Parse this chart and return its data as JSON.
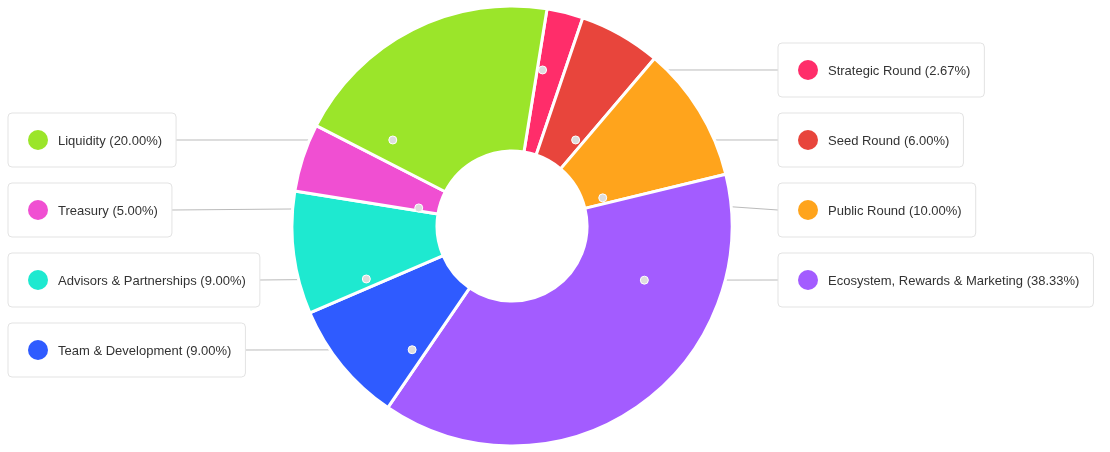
{
  "chart_data": {
    "type": "donut",
    "categories": [
      "Strategic Round",
      "Seed Round",
      "Public Round",
      "Ecosystem, Rewards & Marketing",
      "Team & Development",
      "Advisors & Partnerships",
      "Treasury",
      "Liquidity"
    ],
    "values": [
      2.67,
      6,
      10,
      38.33,
      9,
      9,
      5,
      20
    ],
    "legend": "right",
    "value_labels": [
      "(2.67%)",
      "(6.00%)",
      "(10.00%)",
      "(38.33%)",
      "(9.00%)",
      "(9.00%)",
      "(5.00%)",
      "(20.00%)"
    ],
    "colors": [
      "#ff2d6a",
      "#e8453c",
      "#ffa41c",
      "#a35cff",
      "#2f5bff",
      "#1ee9d0",
      "#f04fd2",
      "#9be52a"
    ]
  }
}
